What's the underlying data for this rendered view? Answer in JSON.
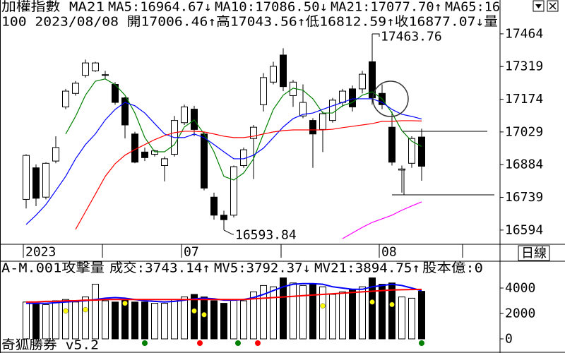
{
  "header": {
    "title": "加權指數 MA21",
    "info": "100 2023/08/08 開17006.46↑高17043.56↑低16812.59↑收16877.07↓量"
  },
  "period": "日線",
  "footer": "奇狐勝券 v5.2",
  "chart_data": [
    {
      "type": "candlestick",
      "categories": [
        "2023",
        null,
        null,
        null,
        null,
        null,
        null,
        null,
        null,
        null,
        null,
        null,
        null,
        null,
        null,
        null,
        "07",
        null,
        null,
        null,
        null,
        null,
        null,
        null,
        null,
        null,
        null,
        null,
        null,
        null,
        null,
        null,
        null,
        null,
        null,
        null,
        "08",
        null,
        null,
        null,
        null
      ],
      "open": [
        16730,
        16870,
        16740,
        16900,
        17140,
        17200,
        17280,
        17300,
        17280,
        17240,
        17180,
        17020,
        16940,
        16930,
        16880,
        16930,
        17070,
        17130,
        17020,
        16740,
        16660,
        16660,
        16880,
        17000,
        17150,
        17250,
        17370,
        17190,
        17100,
        17080,
        17040,
        17080,
        17160,
        17220,
        17220,
        17340,
        17200,
        17050,
        16860,
        16890,
        17006.46
      ],
      "high": [
        16930,
        16885,
        16895,
        17010,
        17220,
        17255,
        17350,
        17340,
        17300,
        17250,
        17185,
        17030,
        16960,
        16950,
        16920,
        17100,
        17150,
        17145,
        17030,
        16760,
        16680,
        16880,
        16960,
        17060,
        17290,
        17340,
        17400,
        17260,
        17240,
        17090,
        17120,
        17180,
        17220,
        17235,
        17300,
        17463.76,
        17240,
        17120,
        16880,
        17010,
        17043.56
      ],
      "low": [
        16690,
        16700,
        16730,
        16890,
        17130,
        17190,
        17270,
        17295,
        17265,
        17150,
        17000,
        16890,
        16900,
        16920,
        16810,
        16920,
        17060,
        17010,
        16770,
        16640,
        16593.84,
        16650,
        16870,
        16820,
        17120,
        17240,
        17210,
        17140,
        17090,
        16870,
        16940,
        17070,
        17140,
        17120,
        17200,
        17150,
        17130,
        16880,
        16760,
        16870,
        16812.59
      ],
      "close": [
        16925,
        16735,
        16890,
        16960,
        17210,
        17245,
        17335,
        17335,
        17283,
        17160,
        17060,
        16895,
        16915,
        16945,
        16910,
        17080,
        17140,
        17040,
        16780,
        16660,
        16640,
        16875,
        16950,
        17050,
        17270,
        17320,
        17230,
        17250,
        17160,
        17020,
        17110,
        17170,
        17210,
        17140,
        17285,
        17180,
        17150,
        16895,
        16865,
        17000,
        16877.07
      ],
      "up_color": "#ffffff",
      "down_color": "#000000",
      "series": [
        {
          "name": "MA5:16964.67↓",
          "color": "#008000",
          "values": [
            null,
            null,
            null,
            null,
            17020,
            17098,
            17192,
            17254,
            17264,
            17239,
            17192,
            17113,
            17004,
            16941,
            16941,
            16973,
            17051,
            17082,
            17020,
            16941,
            16832,
            16816,
            16847,
            16910,
            17020,
            17129,
            17192,
            17223,
            17214,
            17176,
            17113,
            17113,
            17145,
            17160,
            17192,
            17207,
            17176,
            17113,
            17035,
            16988,
            16964.67
          ]
        },
        {
          "name": "MA10:17086.50↓",
          "color": "#0000ff",
          "values": [
            16619,
            16660,
            16707,
            16769,
            16832,
            16910,
            16973,
            17020,
            17082,
            17129,
            17160,
            17145,
            17113,
            17066,
            17020,
            17004,
            17004,
            17020,
            17004,
            16973,
            16941,
            16910,
            16910,
            16926,
            16957,
            17004,
            17051,
            17088,
            17107,
            17113,
            17129,
            17145,
            17160,
            17176,
            17176,
            17176,
            17160,
            17129,
            17107,
            17098,
            17086.5
          ]
        },
        {
          "name": "MA21:17077.70↑",
          "color": "#ff0000",
          "values": [
            null,
            null,
            null,
            null,
            null,
            16597,
            16675,
            16753,
            16832,
            16888,
            16926,
            16951,
            16973,
            16995,
            17013,
            17026,
            17032,
            17032,
            17029,
            17020,
            17010,
            17004,
            17004,
            17010,
            17020,
            17029,
            17035,
            17038,
            17038,
            17038,
            17038,
            17041,
            17048,
            17054,
            17060,
            17066,
            17076,
            17076,
            17079,
            17079,
            17077.7
          ]
        },
        {
          "name": "MA65:16",
          "color": "#ff00ff",
          "values": [
            null,
            null,
            null,
            null,
            null,
            null,
            null,
            null,
            null,
            null,
            null,
            null,
            null,
            null,
            null,
            null,
            null,
            null,
            null,
            null,
            null,
            null,
            null,
            null,
            null,
            null,
            null,
            null,
            null,
            null,
            null,
            null,
            16556,
            16581,
            16606,
            16628,
            16644,
            16660,
            16682,
            16701,
            16719
          ]
        }
      ],
      "annotations": [
        "17463.76",
        "16593.84"
      ],
      "ylim": [
        16531,
        17614
      ],
      "yticks": [
        17464,
        17319,
        17174,
        17029,
        16884,
        16739,
        16594
      ]
    },
    {
      "type": "bar",
      "title": "A-M.001攻擊量",
      "extra_label": {
        "text": "股本億:0",
        "color": "#ff00ff"
      },
      "series": [
        {
          "name": "成交:3743.14↑",
          "color": "#008000",
          "style": "bar",
          "values": [
            2900,
            2800,
            2700,
            3000,
            3100,
            2900,
            3300,
            4300,
            3000,
            2900,
            3100,
            2900,
            2900,
            2800,
            2800,
            3100,
            3300,
            3500,
            3300,
            3000,
            2800,
            3100,
            3000,
            3700,
            4200,
            4100,
            4800,
            4400,
            4200,
            4300,
            4100,
            3500,
            3700,
            3900,
            4100,
            4800,
            4300,
            4400,
            3300,
            3200,
            3743.14
          ]
        },
        {
          "name": "MV5:3792.37↓",
          "color": "#0000ff",
          "style": "line",
          "values": [
            2800,
            2800,
            2800,
            2850,
            2900,
            2950,
            3000,
            3100,
            3200,
            3250,
            3200,
            3100,
            3000,
            2950,
            2900,
            2950,
            3050,
            3150,
            3200,
            3150,
            3050,
            3050,
            3100,
            3250,
            3500,
            3800,
            4100,
            4300,
            4350,
            4350,
            4300,
            4100,
            4000,
            3900,
            3900,
            4100,
            4200,
            4300,
            4200,
            4000,
            3792.37
          ]
        },
        {
          "name": "MV21:3894.75↑",
          "color": "#ff0000",
          "style": "line",
          "values": [
            2900,
            2900,
            2950,
            2950,
            3000,
            3000,
            3050,
            3050,
            3100,
            3100,
            3100,
            3100,
            3100,
            3100,
            3100,
            3100,
            3100,
            3100,
            3100,
            3100,
            3100,
            3100,
            3100,
            3150,
            3200,
            3250,
            3300,
            3350,
            3400,
            3450,
            3500,
            3550,
            3600,
            3650,
            3700,
            3750,
            3800,
            3850,
            3870,
            3880,
            3894.75
          ]
        },
        {
          "color": "#ffff00",
          "style": "dot",
          "values": [
            null,
            null,
            null,
            null,
            2200,
            null,
            2300,
            null,
            null,
            null,
            2800,
            null,
            null,
            null,
            null,
            null,
            null,
            2200,
            1900,
            null,
            null,
            null,
            null,
            null,
            null,
            null,
            null,
            null,
            null,
            null,
            2600,
            null,
            null,
            null,
            null,
            2900,
            null,
            2700,
            null,
            null,
            null
          ]
        }
      ],
      "ylim": [
        -1000,
        6111
      ],
      "yticks": [
        4000,
        2000,
        0
      ]
    }
  ]
}
